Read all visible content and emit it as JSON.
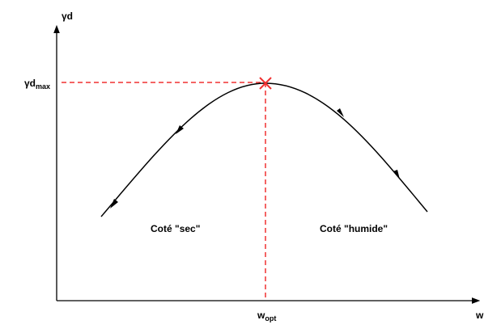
{
  "axes": {
    "y_label": "γd",
    "y_marker": {
      "base": "γd",
      "sub": "max"
    },
    "x_marker": {
      "base": "w",
      "sub": "opt"
    },
    "x_label": "w"
  },
  "regions": {
    "left": "Coté \"sec\"",
    "right": "Coté \"humide\""
  }
}
